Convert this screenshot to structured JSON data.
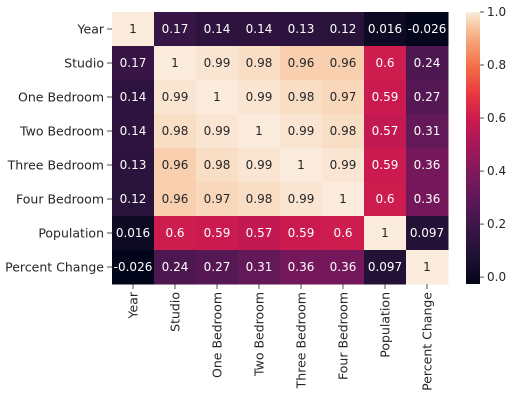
{
  "chart_data": {
    "type": "heatmap",
    "labels": [
      "Year",
      "Studio",
      "One Bedroom",
      "Two Bedroom",
      "Three Bedroom",
      "Four Bedroom",
      "Population",
      "Percent Change"
    ],
    "values": [
      [
        1,
        0.17,
        0.14,
        0.14,
        0.13,
        0.12,
        0.016,
        -0.026
      ],
      [
        0.17,
        1,
        0.99,
        0.98,
        0.96,
        0.96,
        0.6,
        0.24
      ],
      [
        0.14,
        0.99,
        1,
        0.99,
        0.98,
        0.97,
        0.59,
        0.27
      ],
      [
        0.14,
        0.98,
        0.99,
        1,
        0.99,
        0.98,
        0.57,
        0.31
      ],
      [
        0.13,
        0.96,
        0.98,
        0.99,
        1,
        0.99,
        0.59,
        0.36
      ],
      [
        0.12,
        0.96,
        0.97,
        0.98,
        0.99,
        1,
        0.6,
        0.36
      ],
      [
        0.016,
        0.6,
        0.59,
        0.57,
        0.59,
        0.6,
        1,
        0.097
      ],
      [
        -0.026,
        0.24,
        0.27,
        0.31,
        0.36,
        0.36,
        0.097,
        1
      ]
    ],
    "cell_labels": [
      [
        "1",
        "0.17",
        "0.14",
        "0.14",
        "0.13",
        "0.12",
        "0.016",
        "-0.026"
      ],
      [
        "0.17",
        "1",
        "0.99",
        "0.98",
        "0.96",
        "0.96",
        "0.6",
        "0.24"
      ],
      [
        "0.14",
        "0.99",
        "1",
        "0.99",
        "0.98",
        "0.97",
        "0.59",
        "0.27"
      ],
      [
        "0.14",
        "0.98",
        "0.99",
        "1",
        "0.99",
        "0.98",
        "0.57",
        "0.31"
      ],
      [
        "0.13",
        "0.96",
        "0.98",
        "0.99",
        "1",
        "0.99",
        "0.59",
        "0.36"
      ],
      [
        "0.12",
        "0.96",
        "0.97",
        "0.98",
        "0.99",
        "1",
        "0.6",
        "0.36"
      ],
      [
        "0.016",
        "0.6",
        "0.59",
        "0.57",
        "0.59",
        "0.6",
        "1",
        "0.097"
      ],
      [
        "-0.026",
        "0.24",
        "0.27",
        "0.31",
        "0.36",
        "0.36",
        "0.097",
        "1"
      ]
    ],
    "colorbar": {
      "colormap": "rocket",
      "range": [
        -0.026,
        1.0
      ],
      "ticks": [
        0.0,
        0.2,
        0.4,
        0.6,
        0.8,
        1.0
      ],
      "tick_labels": [
        "0.0",
        "0.2",
        "0.4",
        "0.6",
        "0.8",
        "1.0"
      ]
    },
    "title": "",
    "xlabel": "",
    "ylabel": ""
  }
}
